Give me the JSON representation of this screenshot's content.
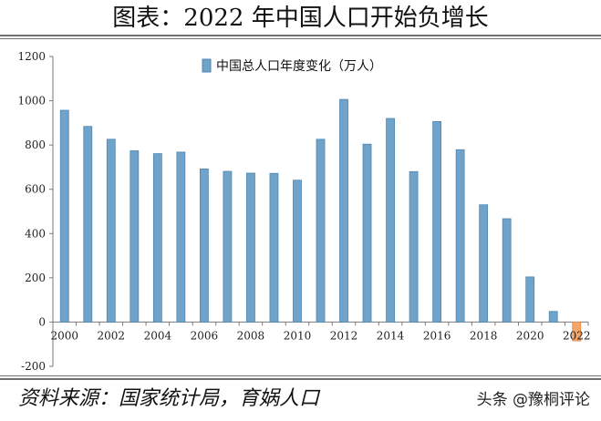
{
  "header": {
    "title": "图表：2022 年中国人口开始负增长"
  },
  "footer": {
    "source": "资料来源：国家统计局，育娲人口",
    "watermark": "头条 @豫桐评论"
  },
  "chart_data": {
    "type": "bar",
    "categories": [
      "2000",
      "2001",
      "2002",
      "2003",
      "2004",
      "2005",
      "2006",
      "2007",
      "2008",
      "2009",
      "2010",
      "2011",
      "2012",
      "2013",
      "2014",
      "2015",
      "2016",
      "2017",
      "2018",
      "2019",
      "2020",
      "2021",
      "2022"
    ],
    "x_tick_labels": [
      "2000",
      "2002",
      "2004",
      "2006",
      "2008",
      "2010",
      "2012",
      "2014",
      "2016",
      "2018",
      "2020",
      "2022"
    ],
    "series": [
      {
        "name": "中国总人口年度变化（万人）",
        "values": [
          957,
          884,
          826,
          774,
          761,
          768,
          692,
          681,
          673,
          672,
          641,
          826,
          1006,
          804,
          920,
          680,
          906,
          779,
          530,
          467,
          204,
          48,
          -85
        ]
      }
    ],
    "yticks": [
      -200,
      0,
      200,
      400,
      600,
      800,
      1000,
      1200
    ],
    "ylim": [
      -200,
      1200
    ],
    "legend_position": "top-center",
    "colors": {
      "positive": "#6fa3c9",
      "positive_edge": "#4f86b0",
      "negative": "#f5a46a",
      "negative_edge": "#e28a4c"
    }
  }
}
